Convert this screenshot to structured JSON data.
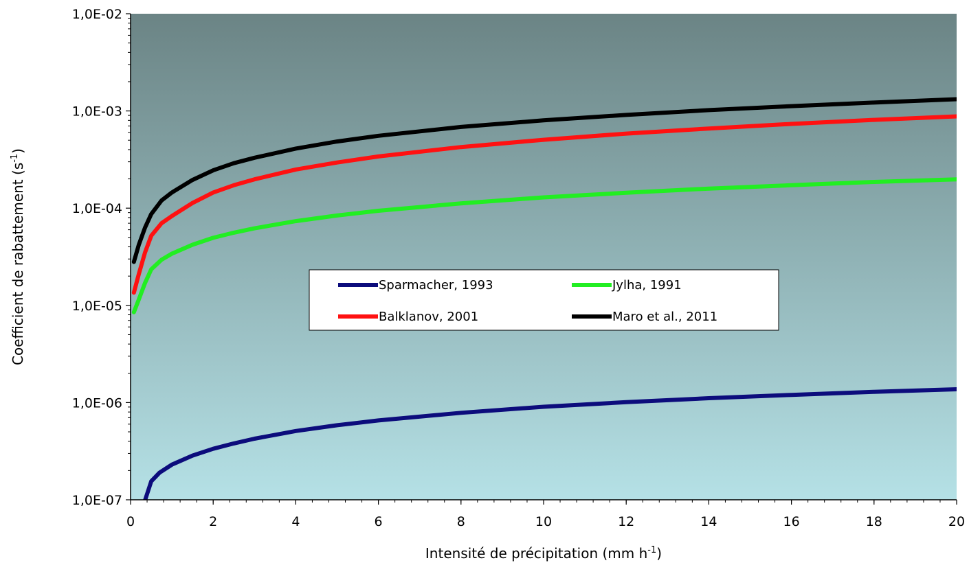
{
  "chart_data": {
    "type": "line",
    "xlabel": "Intensité de précipitation (mm h",
    "xlabel_sup": "-1",
    "xlabel_end": ")",
    "ylabel": "Coefficient de rabattement (s",
    "ylabel_sup": "-1",
    "ylabel_end": ")",
    "x_range": [
      0,
      20
    ],
    "y_range": [
      1e-07,
      0.01
    ],
    "y_scale": "log",
    "grid": false,
    "legend_position": "center",
    "x_ticks": [
      0,
      2,
      4,
      6,
      8,
      10,
      12,
      14,
      16,
      18,
      20
    ],
    "x_tick_labels": [
      "0",
      "2",
      "4",
      "6",
      "8",
      "10",
      "12",
      "14",
      "16",
      "18",
      "20"
    ],
    "y_ticks": [
      1e-07,
      1e-06,
      1e-05,
      0.0001,
      0.001,
      0.01
    ],
    "y_tick_labels": [
      "1,0E-07",
      "1,0E-06",
      "1,0E-05",
      "1,0E-04",
      "1,0E-03",
      "1,0E-02"
    ],
    "background_gradient": [
      "#6b8485",
      "#b5e1e6"
    ],
    "series": [
      {
        "name": "Sparmacher, 1993",
        "color": "#0c0c7c",
        "x": [
          0.3,
          0.5,
          0.7,
          1,
          1.5,
          2,
          2.5,
          3,
          4,
          5,
          6,
          8,
          10,
          12,
          14,
          16,
          18,
          20
        ],
        "y": [
          8.5e-08,
          1.55e-07,
          1.9e-07,
          2.3e-07,
          2.85e-07,
          3.35e-07,
          3.8e-07,
          4.25e-07,
          5.1e-07,
          5.85e-07,
          6.55e-07,
          7.85e-07,
          9.05e-07,
          1.01e-06,
          1.11e-06,
          1.2e-06,
          1.29e-06,
          1.37e-06
        ]
      },
      {
        "name": "Jylha, 1991",
        "color": "#22ee22",
        "x": [
          0.08,
          0.2,
          0.35,
          0.5,
          0.75,
          1,
          1.5,
          2,
          2.5,
          3,
          4,
          5,
          6,
          8,
          10,
          12,
          14,
          16,
          18,
          20
        ],
        "y": [
          8.5e-06,
          1.15e-05,
          1.7e-05,
          2.35e-05,
          2.95e-05,
          3.4e-05,
          4.2e-05,
          4.95e-05,
          5.6e-05,
          6.2e-05,
          7.35e-05,
          8.4e-05,
          9.4e-05,
          0.000112,
          0.000129,
          0.000144,
          0.000159,
          0.000172,
          0.000186,
          0.000198
        ]
      },
      {
        "name": "Balklanov, 2001",
        "color": "#ff1111",
        "x": [
          0.08,
          0.2,
          0.35,
          0.5,
          0.75,
          1,
          1.5,
          2,
          2.5,
          3,
          4,
          5,
          6,
          8,
          10,
          12,
          14,
          16,
          18,
          20
        ],
        "y": [
          1.35e-05,
          2.1e-05,
          3.5e-05,
          5.2e-05,
          7e-05,
          8.3e-05,
          0.000113,
          0.000145,
          0.000172,
          0.000198,
          0.00025,
          0.000295,
          0.00034,
          0.000425,
          0.000505,
          0.000585,
          0.00066,
          0.000735,
          0.00081,
          0.00088
        ]
      },
      {
        "name": "Maro et al., 2011",
        "color": "#000000",
        "x": [
          0.08,
          0.2,
          0.35,
          0.5,
          0.75,
          1,
          1.5,
          2,
          2.5,
          3,
          4,
          5,
          6,
          8,
          10,
          12,
          14,
          16,
          18,
          20
        ],
        "y": [
          2.8e-05,
          4.2e-05,
          6.3e-05,
          8.7e-05,
          0.00012,
          0.000145,
          0.000195,
          0.000245,
          0.00029,
          0.00033,
          0.00041,
          0.000485,
          0.000555,
          0.000685,
          0.0008,
          0.00091,
          0.00102,
          0.00112,
          0.00122,
          0.00132
        ]
      }
    ]
  }
}
